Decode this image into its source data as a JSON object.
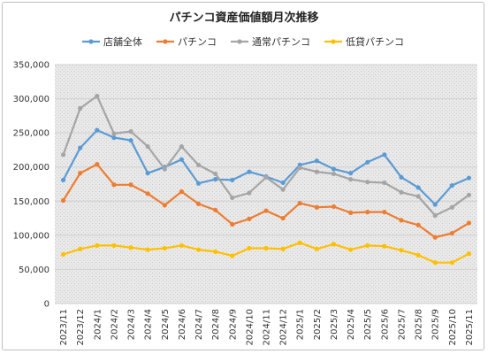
{
  "chart_data": {
    "type": "line",
    "title": "パチンコ資産価値額月次推移",
    "xlabel": "",
    "ylabel": "",
    "ylim": [
      0,
      350000
    ],
    "yticks": [
      0,
      50000,
      100000,
      150000,
      200000,
      250000,
      300000,
      350000
    ],
    "ytick_labels": [
      "0",
      "50,000",
      "100,000",
      "150,000",
      "200,000",
      "250,000",
      "300,000",
      "350,000"
    ],
    "legend_position": "top",
    "grid": "horizontal",
    "plot_background": "gray-dotted-pattern",
    "categories": [
      "2023/11",
      "2023/12",
      "2024/1",
      "2024/2",
      "2024/3",
      "2024/4",
      "2024/5",
      "2024/6",
      "2024/7",
      "2024/8",
      "2024/9",
      "2024/10",
      "2024/11",
      "2024/12",
      "2025/1",
      "2025/2",
      "2025/3",
      "2025/4",
      "2025/5",
      "2025/6",
      "2025/7",
      "2025/8",
      "2025/9",
      "2025/10",
      "2025/11"
    ],
    "series": [
      {
        "name": "店舗全体",
        "color": "#5b9bd5",
        "values": [
          181000,
          228000,
          254000,
          243000,
          239000,
          191000,
          200000,
          211000,
          176000,
          182000,
          181000,
          193000,
          186000,
          177000,
          203000,
          209000,
          197000,
          191000,
          207000,
          218000,
          185000,
          170000,
          145000,
          173000,
          184000
        ]
      },
      {
        "name": "パチンコ",
        "color": "#ed7d31",
        "values": [
          151000,
          191000,
          204000,
          174000,
          174000,
          161000,
          144000,
          164000,
          146000,
          137000,
          116000,
          124000,
          136000,
          125000,
          147000,
          141000,
          142000,
          133000,
          134000,
          134000,
          122000,
          115000,
          97000,
          103000,
          118000
        ]
      },
      {
        "name": "通常パチンコ",
        "color": "#a5a5a5",
        "values": [
          218000,
          286000,
          304000,
          249000,
          252000,
          230000,
          197000,
          230000,
          203000,
          190000,
          155000,
          162000,
          185000,
          167000,
          199000,
          193000,
          190000,
          182000,
          178000,
          177000,
          163000,
          157000,
          129000,
          141000,
          159000
        ]
      },
      {
        "name": "低貸パチンコ",
        "color": "#ffc000",
        "values": [
          72000,
          80000,
          85000,
          85000,
          82000,
          79000,
          81000,
          85000,
          79000,
          76000,
          70000,
          81000,
          81000,
          80000,
          89000,
          80000,
          87000,
          79000,
          85000,
          84000,
          78000,
          71000,
          60000,
          60000,
          73000
        ]
      }
    ]
  }
}
